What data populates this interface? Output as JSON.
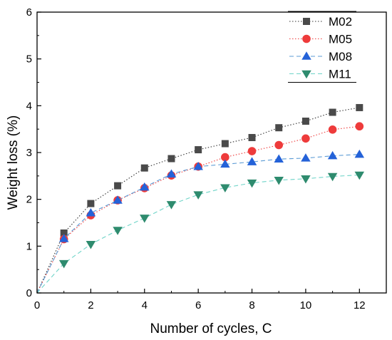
{
  "chart_data": {
    "type": "line",
    "xlabel": "Number of cycles, C",
    "ylabel": "Weight loss (%)",
    "xlim": [
      0,
      13
    ],
    "ylim": [
      0,
      6
    ],
    "xticks": [
      0,
      2,
      4,
      6,
      8,
      10,
      12
    ],
    "yticks": [
      0,
      1,
      2,
      3,
      4,
      5,
      6
    ],
    "grid": false,
    "legend_position": "top-right",
    "series": [
      {
        "name": "M02",
        "marker": "square",
        "marker_color": "#4a4a4a",
        "line_color": "#333333",
        "line_style": "dotted",
        "x": [
          0,
          1,
          2,
          3,
          4,
          5,
          6,
          7,
          8,
          9,
          10,
          11,
          12
        ],
        "values": [
          0,
          1.28,
          1.91,
          2.29,
          2.67,
          2.87,
          3.06,
          3.19,
          3.32,
          3.53,
          3.67,
          3.86,
          3.96
        ]
      },
      {
        "name": "M05",
        "marker": "circle",
        "marker_color": "#ee3b3b",
        "line_color": "#ee3b3b",
        "line_style": "dotted",
        "x": [
          0,
          1,
          2,
          3,
          4,
          5,
          6,
          7,
          8,
          9,
          10,
          11,
          12
        ],
        "values": [
          0,
          1.15,
          1.66,
          1.98,
          2.24,
          2.51,
          2.7,
          2.9,
          3.03,
          3.16,
          3.3,
          3.49,
          3.56
        ]
      },
      {
        "name": "M08",
        "marker": "triangle-up",
        "marker_color": "#2462d8",
        "line_color": "#5b9bd5",
        "line_style": "dashed",
        "x": [
          0,
          1,
          2,
          3,
          4,
          5,
          6,
          7,
          8,
          9,
          10,
          11,
          12
        ],
        "values": [
          0,
          1.16,
          1.71,
          1.98,
          2.26,
          2.54,
          2.7,
          2.75,
          2.8,
          2.86,
          2.88,
          2.93,
          2.96
        ]
      },
      {
        "name": "M11",
        "marker": "triangle-down",
        "marker_color": "#2e8b6e",
        "line_color": "#6fd4c8",
        "line_style": "dashed",
        "x": [
          0,
          1,
          2,
          3,
          4,
          5,
          6,
          7,
          8,
          9,
          10,
          11,
          12
        ],
        "values": [
          0,
          0.63,
          1.04,
          1.34,
          1.6,
          1.89,
          2.1,
          2.25,
          2.35,
          2.41,
          2.44,
          2.49,
          2.52
        ]
      }
    ]
  }
}
